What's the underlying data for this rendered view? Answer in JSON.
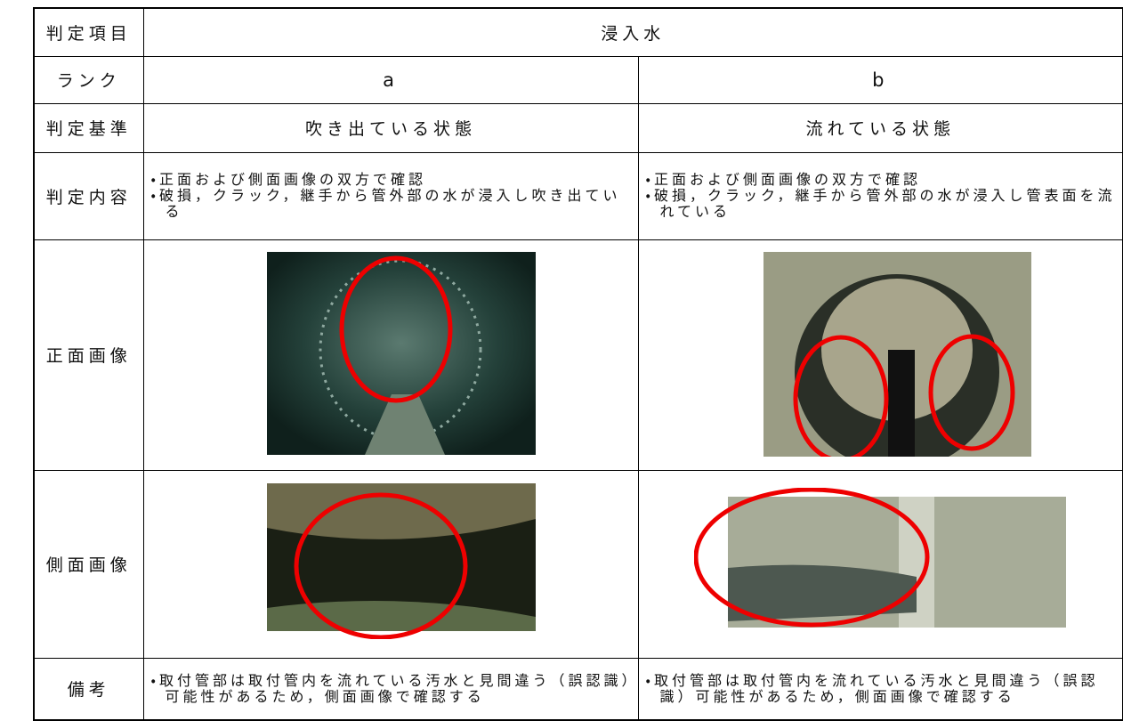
{
  "table": {
    "rows": [
      [
        "判定項目",
        "浸入水"
      ],
      [
        "ランク",
        "a",
        "b"
      ],
      [
        "判定基準",
        "吹き出ている状態",
        "流れている状態"
      ],
      [
        "判定内容",
        [
          "・正面および側面画像の双方で確認",
          "・破損，クラック，継手から管外部の水が浸入し吹き出ている"
        ],
        [
          "・正面および側面画像の双方で確認",
          "・破損，クラック，継手から管外部の水が浸入し管表面を流れている"
        ]
      ],
      [
        "正面画像"
      ],
      [
        "側面画像"
      ],
      [
        "備考",
        [
          "・取付管部は取付管内を流れている汚水と見間違う（誤認識）可能性があるため，側面画像で確認する"
        ],
        [
          "・取付管部は取付管内を流れている汚水と見間違う（誤認識）可能性があるため，側面画像で確認する"
        ]
      ]
    ]
  }
}
